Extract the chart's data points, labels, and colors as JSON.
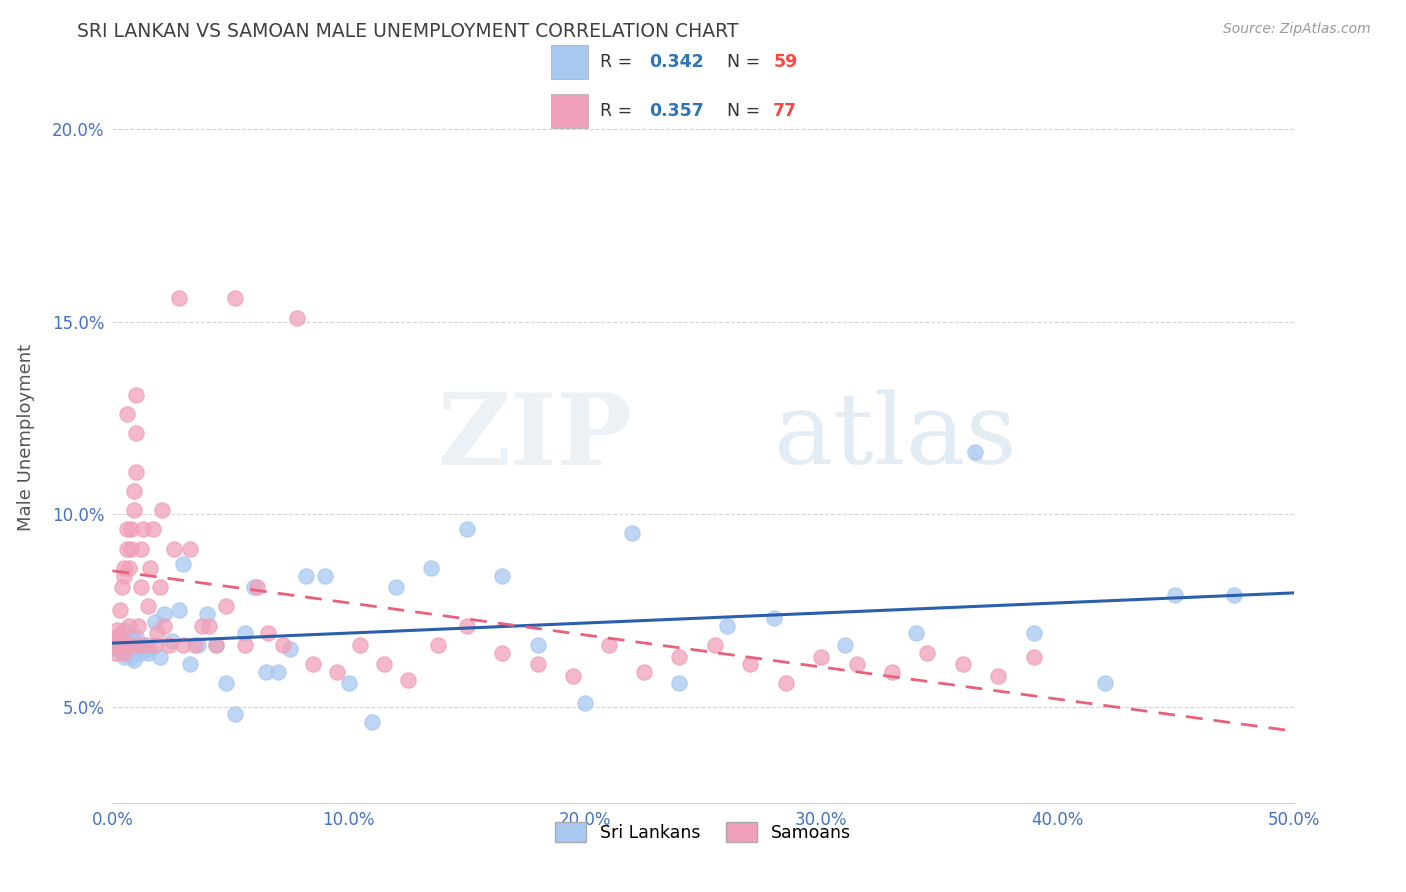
{
  "title": "SRI LANKAN VS SAMOAN MALE UNEMPLOYMENT CORRELATION CHART",
  "source": "Source: ZipAtlas.com",
  "ylabel": "Male Unemployment",
  "xlim": [
    0.0,
    0.5
  ],
  "ylim": [
    0.025,
    0.215
  ],
  "xticks": [
    0.0,
    0.1,
    0.2,
    0.3,
    0.4,
    0.5
  ],
  "xtick_labels": [
    "0.0%",
    "10.0%",
    "20.0%",
    "30.0%",
    "40.0%",
    "50.0%"
  ],
  "yticks": [
    0.05,
    0.1,
    0.15,
    0.2
  ],
  "ytick_labels": [
    "5.0%",
    "10.0%",
    "15.0%",
    "20.0%"
  ],
  "sri_lanka_color": "#a8c8f0",
  "samoan_color": "#f0a0b8",
  "sri_lanka_R": 0.342,
  "sri_lanka_N": 59,
  "samoan_R": 0.357,
  "samoan_N": 77,
  "legend_label_1": "Sri Lankans",
  "legend_label_2": "Samoans",
  "watermark_zip": "ZIP",
  "watermark_atlas": "atlas",
  "title_color": "#404040",
  "axis_tick_color": "#4472c4",
  "legend_R_color": "#2e75b6",
  "legend_N_color": "#ff4444",
  "sri_lanka_trend_color": "#2b5fad",
  "samoan_trend_color": "#e8607a",
  "grid_color": "#d0d0d0",
  "sri_lanka_x": [
    0.001,
    0.002,
    0.003,
    0.004,
    0.005,
    0.005,
    0.006,
    0.006,
    0.007,
    0.008,
    0.008,
    0.009,
    0.009,
    0.01,
    0.01,
    0.011,
    0.012,
    0.013,
    0.014,
    0.015,
    0.016,
    0.018,
    0.02,
    0.022,
    0.025,
    0.028,
    0.03,
    0.033,
    0.036,
    0.04,
    0.044,
    0.048,
    0.052,
    0.056,
    0.06,
    0.065,
    0.07,
    0.075,
    0.082,
    0.09,
    0.1,
    0.11,
    0.12,
    0.135,
    0.15,
    0.165,
    0.18,
    0.2,
    0.22,
    0.24,
    0.26,
    0.28,
    0.31,
    0.34,
    0.365,
    0.39,
    0.42,
    0.45,
    0.475
  ],
  "sri_lanka_y": [
    0.066,
    0.065,
    0.068,
    0.064,
    0.063,
    0.07,
    0.067,
    0.064,
    0.066,
    0.063,
    0.065,
    0.067,
    0.062,
    0.066,
    0.068,
    0.065,
    0.064,
    0.066,
    0.065,
    0.064,
    0.065,
    0.072,
    0.063,
    0.074,
    0.067,
    0.075,
    0.087,
    0.061,
    0.066,
    0.074,
    0.066,
    0.056,
    0.048,
    0.069,
    0.081,
    0.059,
    0.059,
    0.065,
    0.084,
    0.084,
    0.056,
    0.046,
    0.081,
    0.086,
    0.096,
    0.084,
    0.066,
    0.051,
    0.095,
    0.056,
    0.071,
    0.073,
    0.066,
    0.069,
    0.116,
    0.069,
    0.056,
    0.079,
    0.079
  ],
  "samoan_x": [
    0.001,
    0.001,
    0.002,
    0.002,
    0.003,
    0.003,
    0.004,
    0.004,
    0.005,
    0.005,
    0.005,
    0.006,
    0.006,
    0.006,
    0.007,
    0.007,
    0.007,
    0.008,
    0.008,
    0.009,
    0.009,
    0.01,
    0.01,
    0.01,
    0.011,
    0.011,
    0.012,
    0.012,
    0.013,
    0.014,
    0.015,
    0.016,
    0.017,
    0.018,
    0.019,
    0.02,
    0.021,
    0.022,
    0.024,
    0.026,
    0.028,
    0.03,
    0.033,
    0.035,
    0.038,
    0.041,
    0.044,
    0.048,
    0.052,
    0.056,
    0.061,
    0.066,
    0.072,
    0.078,
    0.085,
    0.095,
    0.105,
    0.115,
    0.125,
    0.138,
    0.15,
    0.165,
    0.18,
    0.195,
    0.21,
    0.225,
    0.24,
    0.255,
    0.27,
    0.285,
    0.3,
    0.315,
    0.33,
    0.345,
    0.36,
    0.375,
    0.39
  ],
  "samoan_y": [
    0.066,
    0.064,
    0.068,
    0.07,
    0.067,
    0.075,
    0.081,
    0.069,
    0.064,
    0.084,
    0.086,
    0.091,
    0.096,
    0.126,
    0.066,
    0.071,
    0.086,
    0.091,
    0.096,
    0.101,
    0.106,
    0.111,
    0.121,
    0.131,
    0.066,
    0.071,
    0.081,
    0.091,
    0.096,
    0.066,
    0.076,
    0.086,
    0.096,
    0.066,
    0.069,
    0.081,
    0.101,
    0.071,
    0.066,
    0.091,
    0.156,
    0.066,
    0.091,
    0.066,
    0.071,
    0.071,
    0.066,
    0.076,
    0.156,
    0.066,
    0.081,
    0.069,
    0.066,
    0.151,
    0.061,
    0.059,
    0.066,
    0.061,
    0.057,
    0.066,
    0.071,
    0.064,
    0.061,
    0.058,
    0.066,
    0.059,
    0.063,
    0.066,
    0.061,
    0.056,
    0.063,
    0.061,
    0.059,
    0.064,
    0.061,
    0.058,
    0.063
  ]
}
